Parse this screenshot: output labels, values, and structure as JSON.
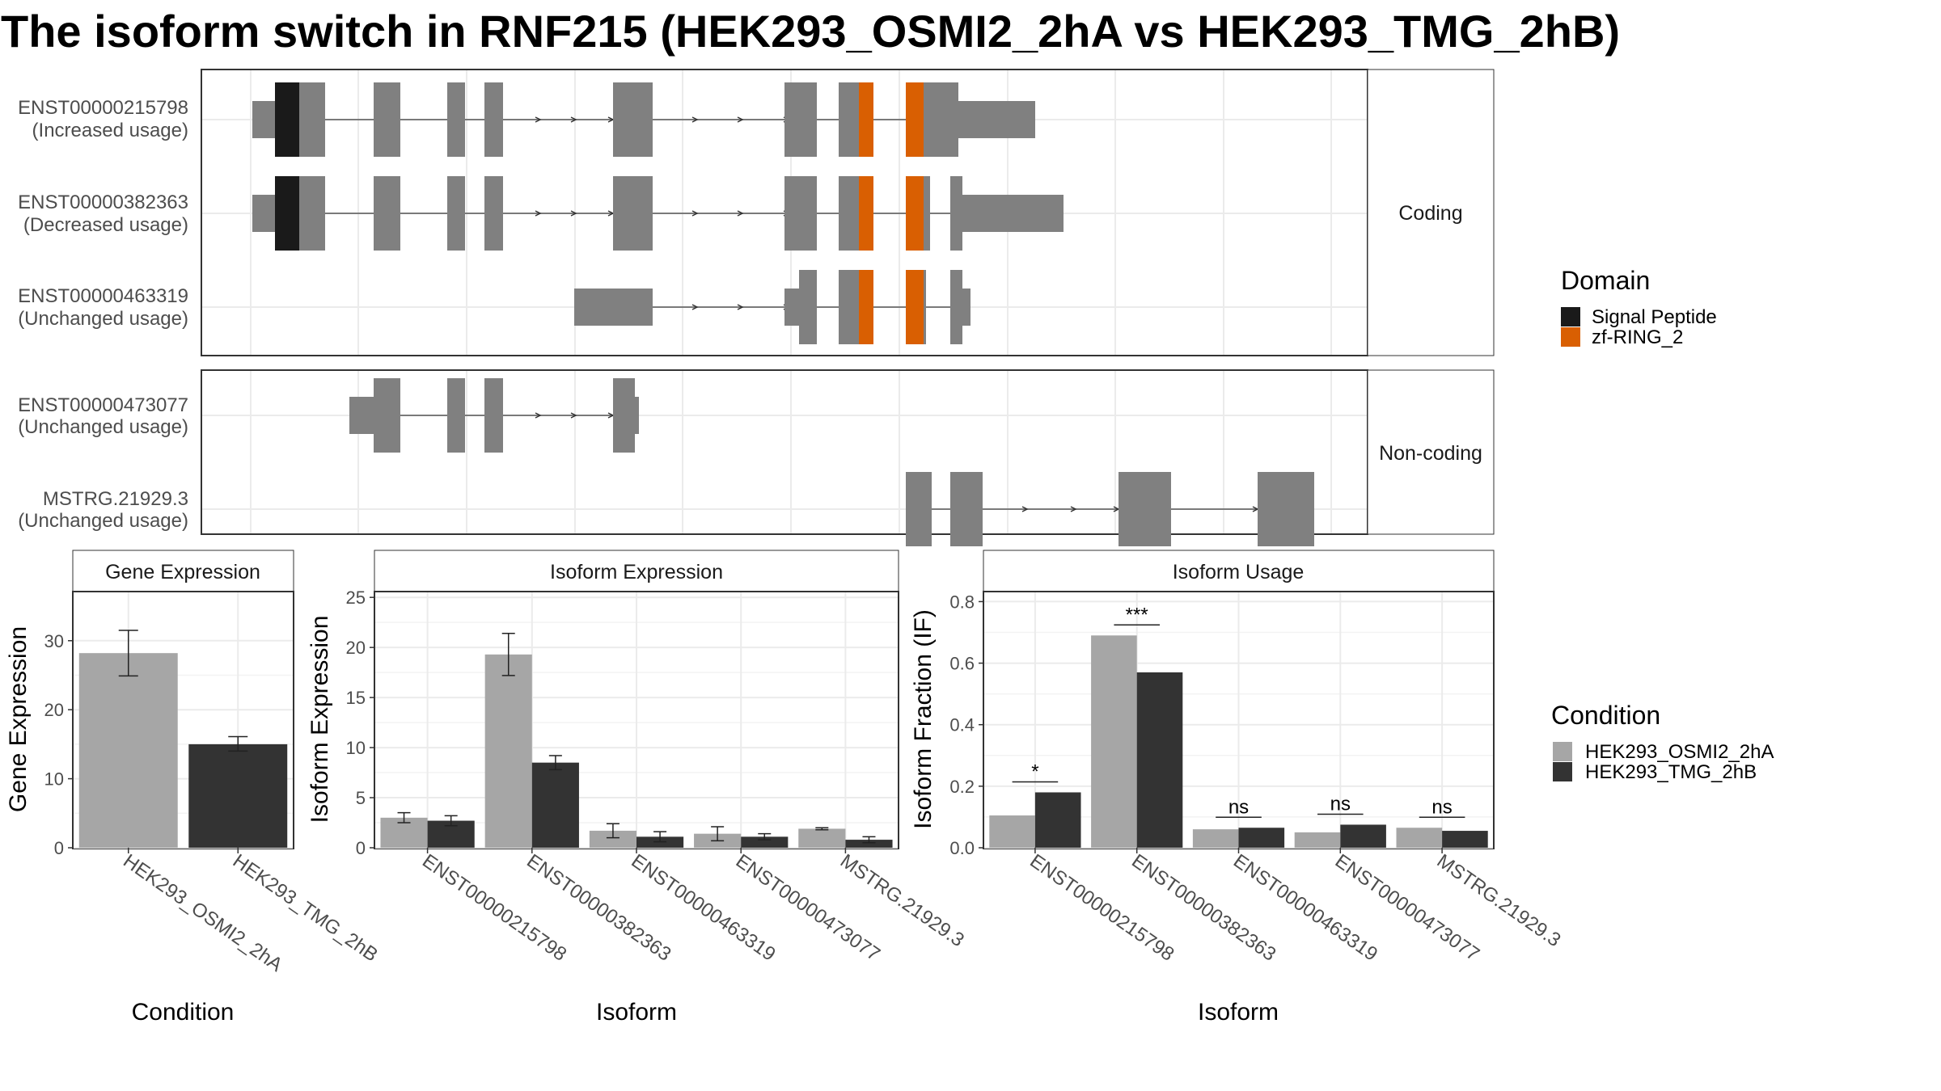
{
  "title": "The isoform switch in RNF215 (HEK293_OSMI2_2hA vs HEK293_TMG_2hB)",
  "colors": {
    "exon": "#808080",
    "signal_peptide": "#1a1a1a",
    "zf_ring": "#d95f02",
    "cond_a": "#a6a6a6",
    "cond_b": "#333333"
  },
  "transcript_panels": [
    {
      "facet": "Coding",
      "rows": [
        {
          "id": "ENST00000215798",
          "usage": "(Increased usage)"
        },
        {
          "id": "ENST00000382363",
          "usage": "(Decreased usage)"
        },
        {
          "id": "ENST00000463319",
          "usage": "(Unchanged usage)"
        }
      ]
    },
    {
      "facet": "Non-coding",
      "rows": [
        {
          "id": "ENST00000473077",
          "usage": "(Unchanged usage)"
        },
        {
          "id": "MSTRG.21929.3",
          "usage": "(Unchanged usage)"
        }
      ]
    }
  ],
  "domain_legend": {
    "title": "Domain",
    "items": [
      {
        "label": "Signal Peptide",
        "color": "#1a1a1a"
      },
      {
        "label": "zf-RING_2",
        "color": "#d95f02"
      }
    ]
  },
  "condition_legend": {
    "title": "Condition",
    "items": [
      {
        "label": "HEK293_OSMI2_2hA",
        "color": "#a6a6a6"
      },
      {
        "label": "HEK293_TMG_2hB",
        "color": "#333333"
      }
    ]
  },
  "chart_data": [
    {
      "type": "bar",
      "title": "Gene Expression",
      "xlabel": "Condition",
      "ylabel": "Gene Expression",
      "categories": [
        "HEK293_OSMI2_2hA",
        "HEK293_TMG_2hB"
      ],
      "values": [
        28.2,
        15.0
      ],
      "errors": [
        [
          24.9,
          31.5
        ],
        [
          14.0,
          16.1
        ]
      ],
      "ylim": [
        0,
        37
      ],
      "yticks": [
        0,
        10,
        20,
        30
      ]
    },
    {
      "type": "bar",
      "title": "Isoform Expression",
      "xlabel": "Isoform",
      "ylabel": "Isoform Expression",
      "categories": [
        "ENST00000215798",
        "ENST00000382363",
        "ENST00000463319",
        "ENST00000473077",
        "MSTRG.21929.3"
      ],
      "series": [
        {
          "name": "HEK293_OSMI2_2hA",
          "values": [
            3.0,
            19.3,
            1.7,
            1.4,
            1.9
          ],
          "errors": [
            [
              2.5,
              3.5
            ],
            [
              17.2,
              21.4
            ],
            [
              1.0,
              2.4
            ],
            [
              0.7,
              2.1
            ],
            [
              1.8,
              2.0
            ]
          ]
        },
        {
          "name": "HEK293_TMG_2hB",
          "values": [
            2.7,
            8.5,
            1.1,
            1.1,
            0.8
          ],
          "errors": [
            [
              2.2,
              3.2
            ],
            [
              7.8,
              9.2
            ],
            [
              0.6,
              1.6
            ],
            [
              0.8,
              1.4
            ],
            [
              0.5,
              1.1
            ]
          ]
        }
      ],
      "ylim": [
        0,
        25.5
      ],
      "yticks": [
        0,
        5,
        10,
        15,
        20,
        25
      ]
    },
    {
      "type": "bar",
      "title": "Isoform Usage",
      "xlabel": "Isoform",
      "ylabel": "Isoform Fraction (IF)",
      "categories": [
        "ENST00000215798",
        "ENST00000382363",
        "ENST00000463319",
        "ENST00000473077",
        "MSTRG.21929.3"
      ],
      "series": [
        {
          "name": "HEK293_OSMI2_2hA",
          "values": [
            0.105,
            0.69,
            0.06,
            0.05,
            0.065
          ]
        },
        {
          "name": "HEK293_TMG_2hB",
          "values": [
            0.18,
            0.57,
            0.065,
            0.075,
            0.055
          ]
        }
      ],
      "significance": [
        "*",
        "***",
        "ns",
        "ns",
        "ns"
      ],
      "ylim": [
        0,
        0.83
      ],
      "yticks": [
        "0.0",
        "0.2",
        "0.4",
        "0.6",
        "0.8"
      ]
    }
  ]
}
